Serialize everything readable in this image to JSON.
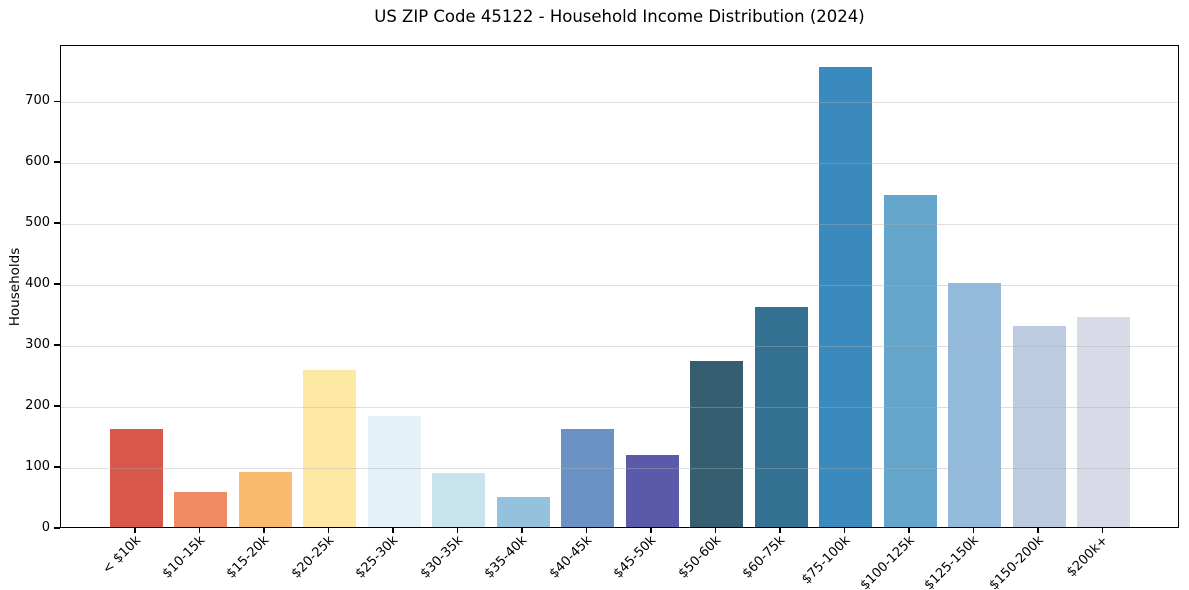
{
  "chart_data": {
    "type": "bar",
    "title": "US ZIP Code 45122 - Household Income Distribution (2024)",
    "xlabel": "",
    "ylabel": "Households",
    "categories": [
      "< $10k",
      "$10-15k",
      "$15-20k",
      "$20-25k",
      "$25-30k",
      "$30-35k",
      "$35-40k",
      "$40-45k",
      "$45-50k",
      "$50-60k",
      "$60-75k",
      "$75-100k",
      "$100-125k",
      "$125-150k",
      "$150-200k",
      "$200k+"
    ],
    "values": [
      160,
      58,
      90,
      258,
      182,
      88,
      50,
      160,
      118,
      272,
      360,
      755,
      545,
      400,
      330,
      345
    ],
    "bar_colors": [
      "#d7574b",
      "#f08a62",
      "#fabb70",
      "#fde9a3",
      "#e4f1f6",
      "#c7e3ec",
      "#94c1dc",
      "#6b92c5",
      "#5b59a9",
      "#365e71",
      "#347092",
      "#3a8abd",
      "#63a5cb",
      "#94badb",
      "#bdcbe0",
      "#d8dae8"
    ],
    "ylim": [
      0,
      792
    ],
    "yticks": [
      0,
      100,
      200,
      300,
      400,
      500,
      600,
      700
    ],
    "xtick_rotation": 45,
    "grid": "horizontal",
    "grid_color": "#b0b0b0",
    "grid_above_bars": true,
    "legend": "none",
    "background": "#ffffff",
    "spine_color": "#000000"
  }
}
